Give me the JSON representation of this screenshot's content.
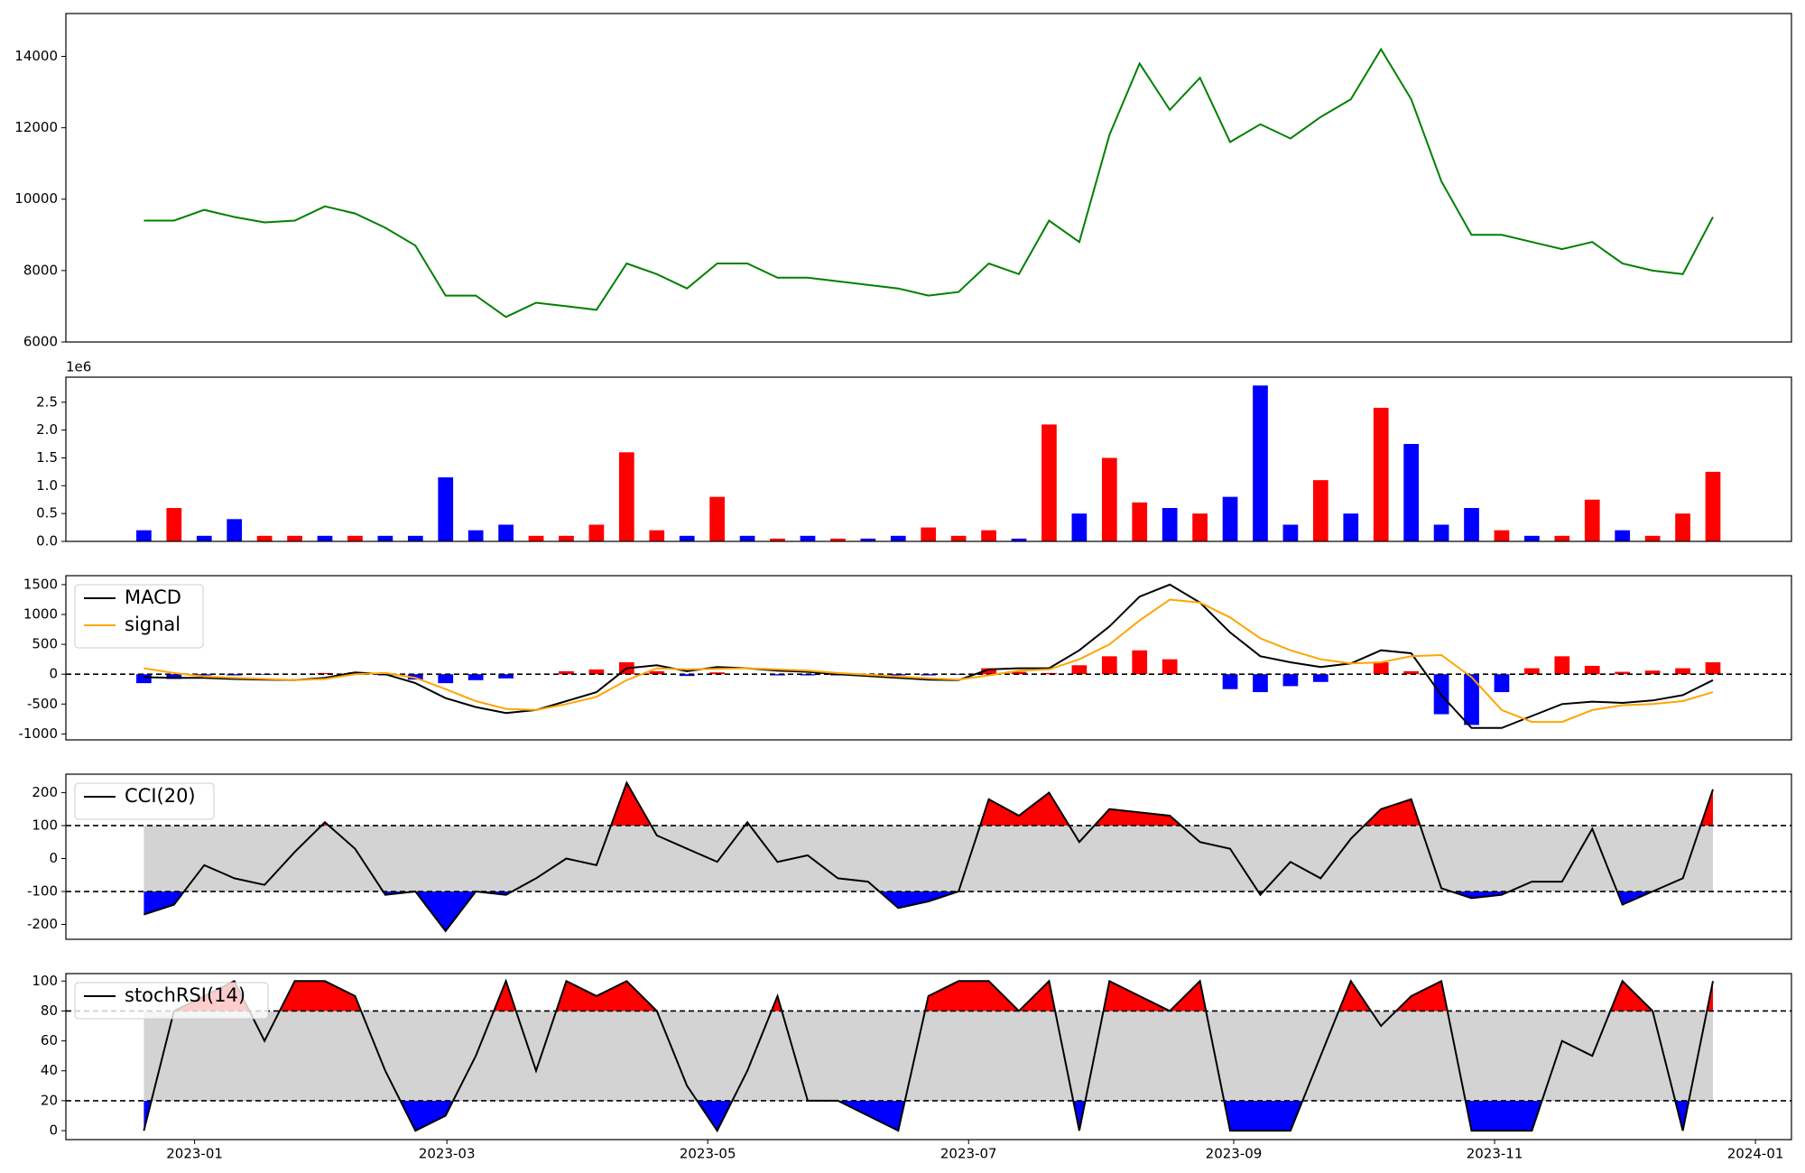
{
  "chart_data": [
    {
      "type": "line",
      "color": "#008000",
      "values": [
        9400,
        9400,
        9700,
        9500,
        9350,
        9400,
        9800,
        9600,
        9200,
        8700,
        7300,
        7300,
        6700,
        7100,
        7000,
        6900,
        8200,
        7900,
        7500,
        8200,
        8200,
        7800,
        7800,
        7700,
        7600,
        7500,
        7300,
        7400,
        8200,
        7900,
        9400,
        8800,
        11800,
        13800,
        12500,
        13400,
        11600,
        12100,
        11700,
        12300,
        12800,
        14200,
        12800,
        10500,
        9000,
        9000,
        8800,
        8600,
        8800,
        8200,
        8000,
        7900,
        9500
      ],
      "ylim": [
        6000,
        15200
      ],
      "yticks": [
        6000,
        8000,
        10000,
        12000,
        14000
      ]
    },
    {
      "type": "bar",
      "offset_text": "1e6",
      "values": [
        0.2,
        0.6,
        0.1,
        0.4,
        0.1,
        0.1,
        0.1,
        0.1,
        0.1,
        0.1,
        1.15,
        0.2,
        0.3,
        0.1,
        0.1,
        0.3,
        1.6,
        0.2,
        0.1,
        0.8,
        0.1,
        0.05,
        0.1,
        0.05,
        0.05,
        0.1,
        0.25,
        0.1,
        0.2,
        0.05,
        2.1,
        0.5,
        1.5,
        0.7,
        0.6,
        0.5,
        0.8,
        2.8,
        0.3,
        1.1,
        0.5,
        2.4,
        1.75,
        0.3,
        0.6,
        0.2,
        0.1,
        0.1,
        0.75,
        0.2,
        0.1,
        0.5,
        1.25
      ],
      "colors": [
        "blue",
        "red",
        "blue",
        "blue",
        "red",
        "red",
        "blue",
        "red",
        "blue",
        "blue",
        "blue",
        "blue",
        "blue",
        "red",
        "red",
        "red",
        "red",
        "red",
        "blue",
        "red",
        "blue",
        "red",
        "blue",
        "red",
        "blue",
        "blue",
        "red",
        "red",
        "red",
        "blue",
        "red",
        "blue",
        "red",
        "red",
        "blue",
        "red",
        "blue",
        "blue",
        "blue",
        "red",
        "blue",
        "red",
        "blue",
        "blue",
        "blue",
        "red",
        "blue",
        "red",
        "red",
        "blue",
        "red",
        "red",
        "red"
      ],
      "ylim": [
        0,
        2.95
      ],
      "yticks": [
        {
          "value": 0,
          "label": "0.0"
        },
        0.5,
        {
          "value": 1,
          "label": "1.0"
        },
        1.5,
        {
          "value": 2,
          "label": "2.0"
        },
        2.5
      ]
    },
    {
      "type": "macd",
      "series": [
        {
          "name": "MACD",
          "color": "#000000",
          "values": [
            -50,
            -60,
            -60,
            -80,
            -90,
            -100,
            -60,
            30,
            0,
            -150,
            -400,
            -550,
            -650,
            -600,
            -450,
            -300,
            100,
            150,
            50,
            120,
            100,
            60,
            40,
            0,
            -30,
            -60,
            -90,
            -100,
            80,
            100,
            100,
            400,
            800,
            1300,
            1500,
            1200,
            700,
            300,
            200,
            120,
            180,
            400,
            350,
            -350,
            -900,
            -900,
            -700,
            -500,
            -460,
            -480,
            -440,
            -350,
            -100
          ]
        },
        {
          "name": "signal",
          "color": "#ffa500",
          "values": [
            100,
            20,
            -40,
            -60,
            -80,
            -100,
            -80,
            0,
            20,
            -60,
            -250,
            -450,
            -580,
            -600,
            -500,
            -380,
            -100,
            100,
            80,
            90,
            100,
            80,
            60,
            20,
            -10,
            -40,
            -70,
            -90,
            -20,
            60,
            80,
            250,
            500,
            900,
            1250,
            1200,
            950,
            600,
            400,
            250,
            180,
            200,
            300,
            320,
            -50,
            -600,
            -800,
            -800,
            -600,
            -520,
            -500,
            -450,
            -300
          ]
        }
      ],
      "histogram": {
        "pos_color": "red",
        "neg_color": "blue",
        "values": [
          -150,
          -80,
          -20,
          -20,
          -10,
          0,
          20,
          30,
          -20,
          -90,
          -150,
          -100,
          -70,
          0,
          50,
          80,
          200,
          50,
          -30,
          30,
          0,
          -20,
          -20,
          -20,
          -20,
          -20,
          -20,
          -10,
          100,
          40,
          20,
          150,
          300,
          400,
          250,
          0,
          -250,
          -300,
          -200,
          -130,
          0,
          200,
          50,
          -670,
          -850,
          -300,
          100,
          300,
          140,
          40,
          60,
          100,
          200
        ]
      },
      "zero_line": 0,
      "ylim": [
        -1100,
        1650
      ],
      "yticks": [
        -1000,
        -500,
        0,
        500,
        1000,
        1500
      ]
    },
    {
      "type": "oscillator",
      "series": [
        {
          "name": "CCI(20)",
          "color": "#000000",
          "values": [
            -170,
            -140,
            -20,
            -60,
            -80,
            20,
            110,
            30,
            -110,
            -100,
            -220,
            -100,
            -110,
            -60,
            0,
            -20,
            230,
            70,
            30,
            -10,
            110,
            -10,
            10,
            -60,
            -70,
            -150,
            -130,
            -100,
            180,
            130,
            200,
            50,
            150,
            140,
            130,
            50,
            30,
            -110,
            -10,
            -60,
            60,
            150,
            180,
            -90,
            -120,
            -110,
            -70,
            -70,
            90,
            -140,
            -100,
            -60,
            210
          ]
        }
      ],
      "bands": [
        -100,
        100
      ],
      "band_color": "#d3d3d3",
      "upper_color": "red",
      "lower_color": "blue",
      "ylim": [
        -245,
        256
      ],
      "yticks": [
        -200,
        -100,
        0,
        100,
        200
      ]
    },
    {
      "type": "oscillator",
      "series": [
        {
          "name": "stochRSI(14)",
          "color": "#000000",
          "values": [
            0,
            80,
            90,
            100,
            60,
            100,
            100,
            90,
            40,
            0,
            10,
            50,
            100,
            40,
            100,
            90,
            100,
            80,
            30,
            0,
            40,
            90,
            20,
            20,
            10,
            0,
            90,
            100,
            100,
            80,
            100,
            0,
            100,
            90,
            80,
            100,
            0,
            0,
            0,
            50,
            100,
            70,
            90,
            100,
            0,
            0,
            0,
            60,
            50,
            100,
            80,
            0,
            100
          ]
        }
      ],
      "bands": [
        20,
        80
      ],
      "band_color": "#d3d3d3",
      "upper_color": "red",
      "lower_color": "blue",
      "ylim": [
        -6,
        105
      ],
      "yticks": [
        0,
        20,
        40,
        60,
        80,
        100
      ],
      "xticks": [
        "2023-01",
        "2023-03",
        "2023-05",
        "2023-07",
        "2023-09",
        "2023-11",
        "2024-01"
      ]
    }
  ]
}
